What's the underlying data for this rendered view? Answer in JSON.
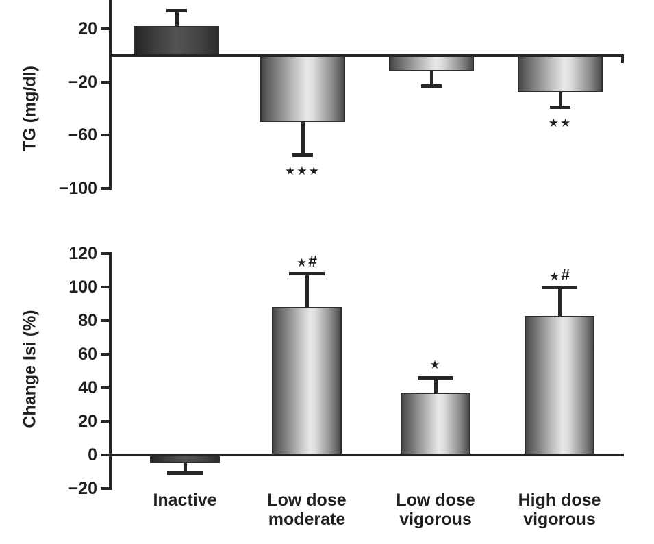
{
  "chart_data": [
    {
      "type": "bar",
      "panel": "top",
      "title": "",
      "xlabel": "",
      "ylabel": "TG (mg/dl)",
      "categories": [
        "Inactive",
        "Low dose moderate",
        "Low dose vigorous",
        "High dose vigorous"
      ],
      "values": [
        22,
        -50,
        -12,
        -28
      ],
      "errors": [
        12,
        25,
        11,
        11
      ],
      "significance": [
        "",
        "★★★",
        "",
        "★★"
      ],
      "ytick_values": [
        20,
        -20,
        -60,
        -100
      ],
      "ytick_labels": [
        "20",
        "−20",
        "−60",
        "−100"
      ],
      "ylim": [
        -100,
        35
      ],
      "baseline": 0,
      "grid": false,
      "legend": "none",
      "bar_styles": [
        "dark",
        "metallic",
        "metallic",
        "metallic"
      ]
    },
    {
      "type": "bar",
      "panel": "bottom",
      "title": "",
      "xlabel": "",
      "ylabel": "Change Isi (%)",
      "categories": [
        "Inactive",
        "Low dose moderate",
        "Low dose vigorous",
        "High dose vigorous"
      ],
      "categories_lines": [
        [
          "Inactive"
        ],
        [
          "Low dose",
          "moderate"
        ],
        [
          "Low dose",
          "vigorous"
        ],
        [
          "High dose",
          "vigorous"
        ]
      ],
      "values": [
        -5,
        88,
        37,
        83
      ],
      "errors": [
        6,
        20,
        9,
        17
      ],
      "significance": [
        "",
        "★#",
        "★",
        "★#"
      ],
      "ytick_values": [
        120,
        100,
        80,
        60,
        40,
        20,
        0,
        -20
      ],
      "ytick_labels": [
        "120",
        "100",
        "80",
        "60",
        "40",
        "20",
        "0",
        "−20"
      ],
      "ylim": [
        -20,
        122
      ],
      "baseline": 0,
      "grid": false,
      "legend": "none",
      "bar_styles": [
        "dark",
        "metallic",
        "metallic",
        "metallic"
      ]
    }
  ],
  "colors": {
    "background": "#ffffff",
    "axis": "#262626",
    "text": "#1f1f1f",
    "bar_border": "#2e2e2e",
    "bar_dark": "#3f3f3f",
    "bar_highlight": "#e8e8e8"
  }
}
